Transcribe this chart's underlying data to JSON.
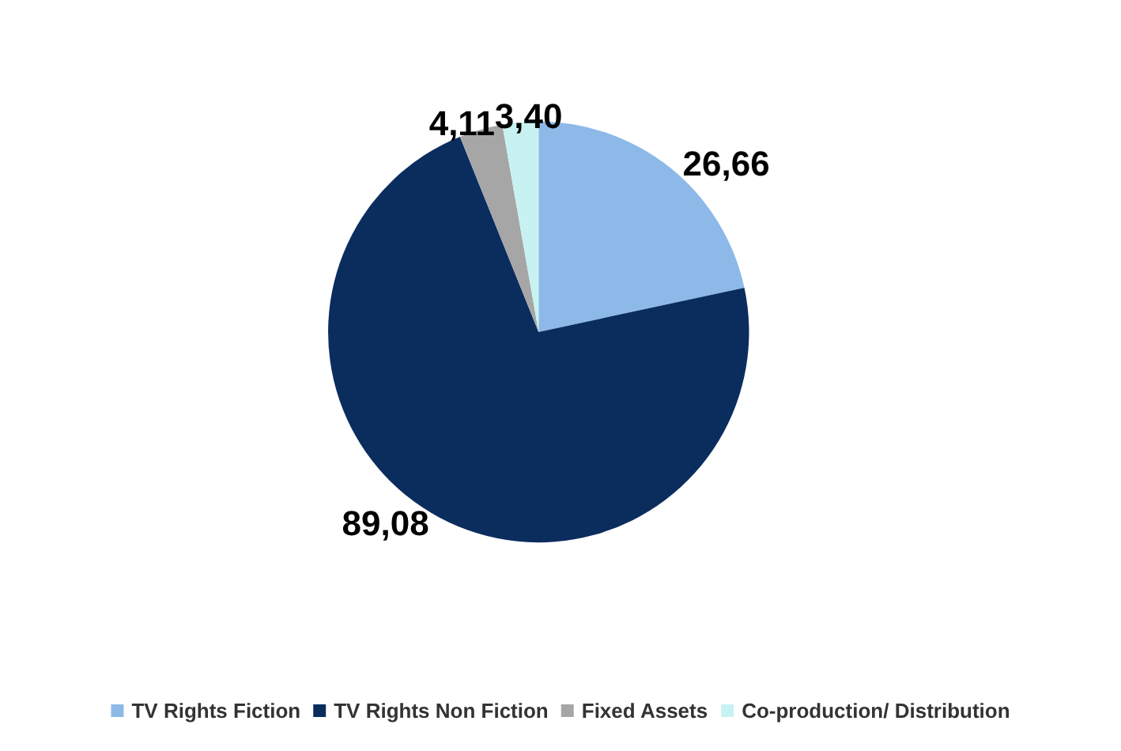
{
  "chart_data": {
    "type": "pie",
    "categories": [
      "TV Rights Fiction",
      "TV Rights Non Fiction",
      "Fixed Assets",
      "Co-production/ Distribution"
    ],
    "values": [
      26.66,
      89.08,
      4.11,
      3.4
    ],
    "value_labels": [
      "26,66",
      "89,08",
      "4,11",
      "3,40"
    ],
    "colors": [
      "#8db9e8",
      "#0b2d5e",
      "#a6a6a6",
      "#c8f2f2"
    ],
    "legend": "bottom"
  }
}
